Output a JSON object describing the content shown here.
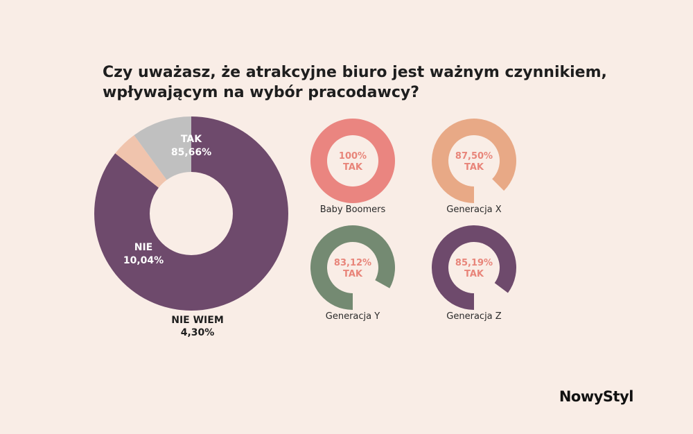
{
  "title": {
    "line1": "Czy uważasz, że atrakcyjne biuro jest ważnym czynnikiem,",
    "line2": "wpływającym na wybór pracodawcy?"
  },
  "brand": {
    "logo": "NowyStyl"
  },
  "colors": {
    "background": "#f9ede6",
    "tak": "#6e4a6c",
    "nie": "#c0c0c0",
    "nie_wiem": "#f0c4ad",
    "baby_boomers": "#ea8580",
    "generacja_x": "#e8a986",
    "generacja_y": "#748a72",
    "generacja_z": "#6e4a6c",
    "ring_label": "#e8857a"
  },
  "chart_data": [
    {
      "type": "pie",
      "donut": true,
      "slices": [
        {
          "label": "TAK",
          "value": 85.66,
          "display": "85,66%",
          "color": "#6e4a6c"
        },
        {
          "label": "NIE WIEM",
          "value": 4.3,
          "display": "4,30%",
          "color": "#f0c4ad"
        },
        {
          "label": "NIE",
          "value": 10.04,
          "display": "10,04%",
          "color": "#c0c0c0"
        }
      ]
    },
    {
      "type": "pie",
      "donut": true,
      "series": [
        {
          "name": "Baby Boomers",
          "value": 100,
          "display": "100%",
          "answer": "TAK",
          "color": "#ea8580"
        },
        {
          "name": "Generacja X",
          "value": 87.5,
          "display": "87,50%",
          "answer": "TAK",
          "color": "#e8a986"
        },
        {
          "name": "Generacja Y",
          "value": 83.12,
          "display": "83,12%",
          "answer": "TAK",
          "color": "#748a72"
        },
        {
          "name": "Generacja Z",
          "value": 85.19,
          "display": "85,19%",
          "answer": "TAK",
          "color": "#6e4a6c"
        }
      ]
    }
  ]
}
